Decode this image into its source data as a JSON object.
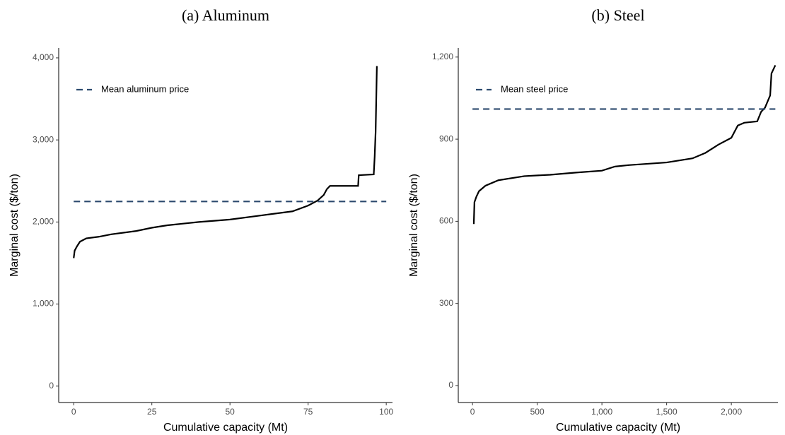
{
  "chart_data": [
    {
      "type": "line",
      "title": "(a) Aluminum",
      "x_label": "Cumulative capacity (Mt)",
      "y_label": "Marginal cost ($/ton)",
      "xlim": [
        -4.8,
        102
      ],
      "xticks": [
        0,
        25,
        50,
        75,
        100
      ],
      "ylim": [
        -200,
        4120
      ],
      "yticks": [
        0,
        {
          "value": 1000,
          "label": "1,000"
        },
        {
          "value": 2000,
          "label": "2,000"
        },
        {
          "value": 3000,
          "label": "3,000"
        },
        {
          "value": 4000,
          "label": "4,000"
        }
      ],
      "legend": "top-left",
      "series": [
        {
          "color": "#000000",
          "dash": false,
          "x": [
            0,
            0.3,
            1,
            2,
            4,
            8,
            12,
            20,
            25,
            30,
            40,
            50,
            60,
            70,
            75,
            78,
            80,
            81,
            82,
            91,
            91.2,
            96,
            96.3,
            96.6,
            96.8,
            97
          ],
          "values": [
            1560,
            1650,
            1700,
            1760,
            1800,
            1820,
            1850,
            1890,
            1930,
            1960,
            2000,
            2030,
            2080,
            2130,
            2200,
            2260,
            2330,
            2400,
            2440,
            2440,
            2570,
            2580,
            2800,
            3100,
            3500,
            3900
          ]
        },
        {
          "name": "Mean aluminum price",
          "color": "#2c4a6e",
          "dash": true,
          "x": [
            0,
            100
          ],
          "values": [
            2250,
            2250
          ]
        }
      ]
    },
    {
      "type": "line",
      "title": "(b) Steel",
      "x_label": "Cumulative capacity (Mt)",
      "y_label": "Marginal cost ($/ton)",
      "xlim": [
        -110,
        2360
      ],
      "xticks": [
        0,
        500,
        {
          "value": 1000,
          "label": "1,000"
        },
        {
          "value": 1500,
          "label": "1,500"
        },
        {
          "value": 2000,
          "label": "2,000"
        }
      ],
      "ylim": [
        -62,
        1233
      ],
      "yticks": [
        0,
        300,
        600,
        900,
        {
          "value": 1200,
          "label": "1,200"
        }
      ],
      "legend": "top-left",
      "series": [
        {
          "color": "#000000",
          "dash": false,
          "x": [
            10,
            15,
            30,
            50,
            100,
            200,
            400,
            600,
            800,
            1000,
            1100,
            1200,
            1500,
            1700,
            1800,
            1900,
            2000,
            2050,
            2100,
            2200,
            2230,
            2260,
            2300,
            2310,
            2340
          ],
          "values": [
            590,
            670,
            690,
            710,
            730,
            750,
            765,
            770,
            778,
            785,
            800,
            805,
            815,
            830,
            850,
            880,
            905,
            950,
            960,
            965,
            1000,
            1015,
            1060,
            1140,
            1170
          ]
        },
        {
          "name": "Mean steel price",
          "color": "#2c4a6e",
          "dash": true,
          "x": [
            0,
            2340
          ],
          "values": [
            1010,
            1010
          ]
        }
      ]
    }
  ]
}
